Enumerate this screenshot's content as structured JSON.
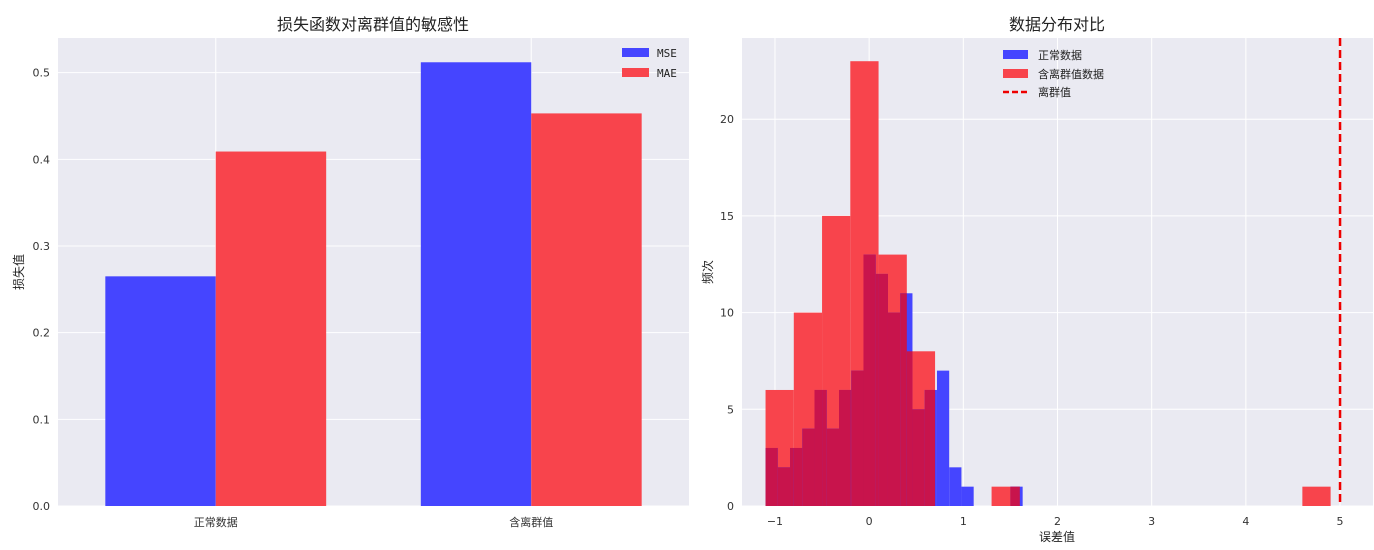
{
  "chart_data": [
    {
      "type": "bar",
      "title": "损失函数对离群值的敏感性",
      "xlabel": "",
      "ylabel": "损失值",
      "categories": [
        "正常数据",
        "含离群值"
      ],
      "series": [
        {
          "name": "MSE",
          "values": [
            0.265,
            0.512
          ],
          "color": "#4545ff"
        },
        {
          "name": "MAE",
          "values": [
            0.409,
            0.453
          ],
          "color": "#f8444c"
        }
      ],
      "ylim": [
        0,
        0.54
      ],
      "yticks": [
        0.0,
        0.1,
        0.2,
        0.3,
        0.4,
        0.5
      ],
      "ytick_labels": [
        "0.0",
        "0.1",
        "0.2",
        "0.3",
        "0.4",
        "0.5"
      ],
      "legend_position": "top-right",
      "grid": true
    },
    {
      "type": "histogram",
      "title": "数据分布对比",
      "xlabel": "误差值",
      "ylabel": "频次",
      "xlim": [
        -1.35,
        5.35
      ],
      "ylim": [
        0,
        24.2
      ],
      "xticks": [
        -1,
        0,
        1,
        2,
        3,
        4,
        5
      ],
      "xtick_labels": [
        "−1",
        "0",
        "1",
        "2",
        "3",
        "4",
        "5"
      ],
      "yticks": [
        0,
        5,
        10,
        15,
        20
      ],
      "ytick_labels": [
        "0",
        "5",
        "10",
        "15",
        "20"
      ],
      "series": [
        {
          "name": "含离群值数据",
          "color": "#f8444c",
          "bin_edges": [
            -1.1,
            -0.8,
            -0.5,
            -0.2,
            0.1,
            0.4,
            0.7,
            1.0,
            1.3,
            1.6,
            1.9,
            2.2,
            2.5,
            2.8,
            3.1,
            3.4,
            3.7,
            4.0,
            4.3,
            4.6,
            4.9,
            5.0
          ],
          "counts": [
            6,
            10,
            15,
            23,
            13,
            8,
            0,
            0,
            1,
            0,
            0,
            0,
            0,
            0,
            0,
            0,
            0,
            0,
            0,
            1,
            0
          ]
        },
        {
          "name": "正常数据",
          "color": "#4545ff",
          "bin_edges": [
            -1.1,
            -0.97,
            -0.84,
            -0.71,
            -0.58,
            -0.45,
            -0.32,
            -0.19,
            -0.06,
            0.07,
            0.2,
            0.33,
            0.46,
            0.59,
            0.72,
            0.85,
            0.98,
            1.11,
            1.24,
            1.37,
            1.5,
            1.63
          ],
          "counts": [
            3,
            2,
            3,
            4,
            6,
            4,
            6,
            7,
            13,
            12,
            10,
            11,
            5,
            6,
            7,
            2,
            1,
            0,
            0,
            0,
            1
          ]
        }
      ],
      "overlap_color": "#c8144c",
      "reference_lines": [
        {
          "name": "离群值",
          "x": 5.0,
          "color": "#ee0000",
          "style": "dashed"
        }
      ],
      "legend_position": "top-center",
      "grid": true
    }
  ]
}
